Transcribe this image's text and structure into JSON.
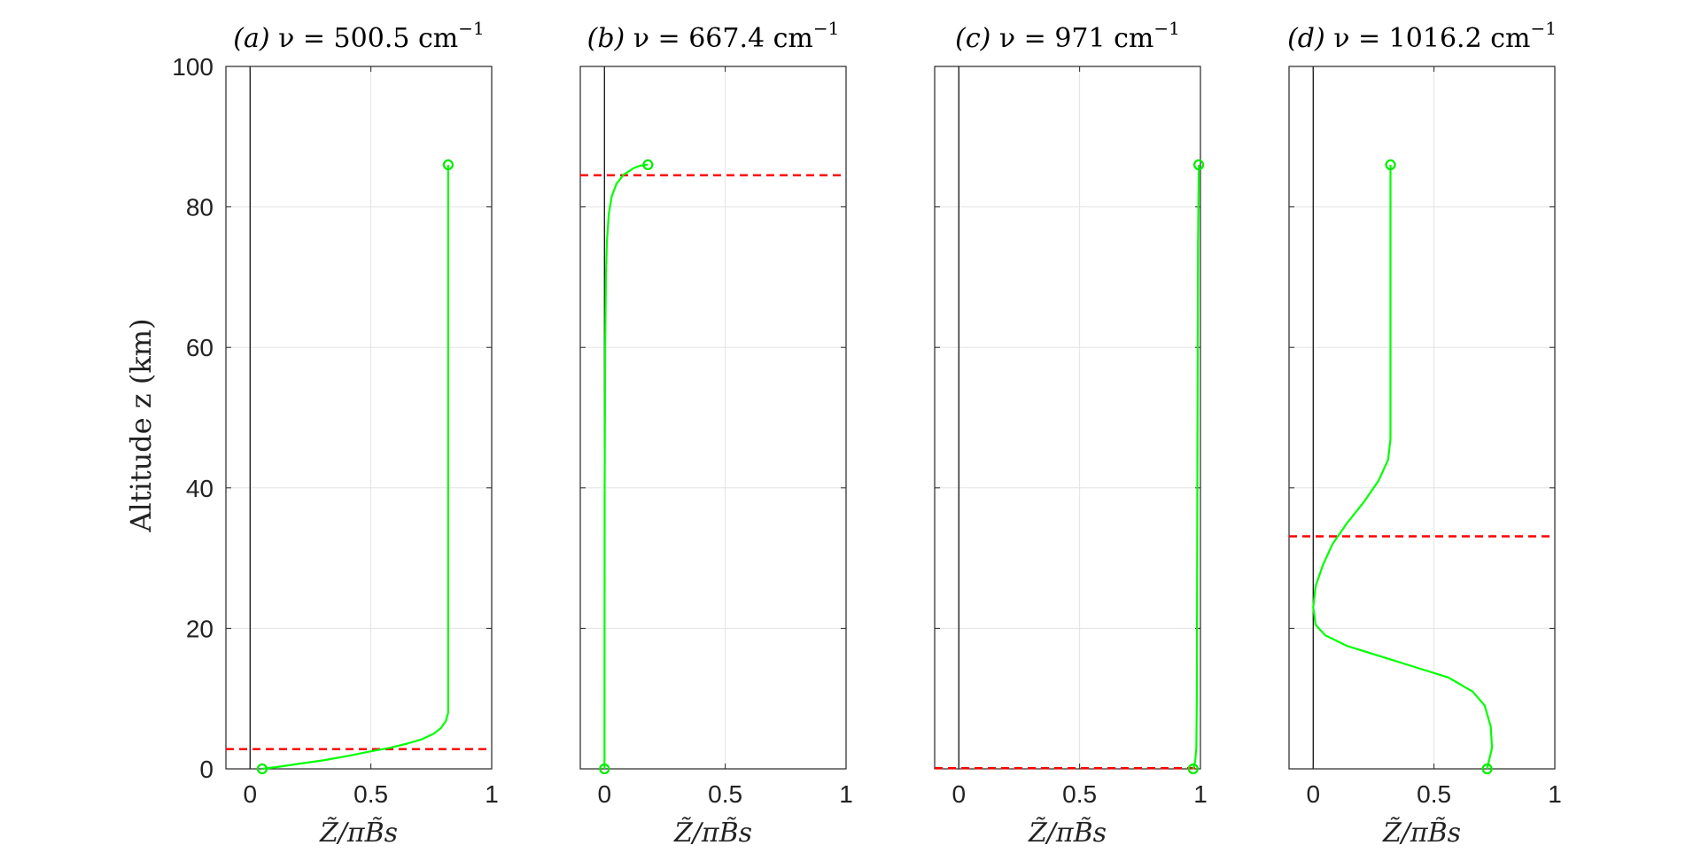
{
  "chart_data": {
    "type": "line",
    "ylabel": "Altitude z (km)",
    "ylim": [
      0,
      100
    ],
    "yticks": [
      0,
      20,
      40,
      60,
      80,
      100
    ],
    "xlim": [
      -0.1,
      1
    ],
    "xticks": [
      0,
      0.5,
      1
    ],
    "xtick_labels": [
      "0",
      "0.5",
      "1"
    ],
    "xlabel": "Z̃/πB̃s",
    "grid": true,
    "colors": {
      "curve": "#00ff00",
      "marker": "#00ee00",
      "dashed": "#ff0000",
      "zero_line": "#000000"
    },
    "panels": [
      {
        "id": "a",
        "title_prefix": "(a)",
        "title": "ν = 500.5 cm",
        "title_exp": "−1",
        "emission_level_km": 2.8,
        "curve": {
          "x": [
            0.05,
            0.12,
            0.2,
            0.3,
            0.4,
            0.5,
            0.58,
            0.65,
            0.71,
            0.76,
            0.79,
            0.81,
            0.82,
            0.82,
            0.82,
            0.82,
            0.82
          ],
          "z": [
            0,
            0.3,
            0.7,
            1.2,
            1.8,
            2.5,
            3.0,
            3.6,
            4.2,
            5.0,
            5.8,
            6.8,
            8,
            20,
            50,
            80,
            86
          ]
        }
      },
      {
        "id": "b",
        "title_prefix": "(b)",
        "title": "ν = 667.4 cm",
        "title_exp": "−1",
        "emission_level_km": 84.5,
        "curve": {
          "x": [
            0,
            0.001,
            0.003,
            0.006,
            0.01,
            0.018,
            0.03,
            0.05,
            0.08,
            0.12,
            0.15,
            0.18
          ],
          "z": [
            0,
            40,
            60,
            70,
            75,
            79,
            81.5,
            83.3,
            84.6,
            85.5,
            85.9,
            86
          ]
        }
      },
      {
        "id": "c",
        "title_prefix": "(c)",
        "title": "ν = 971 cm",
        "title_exp": "−1",
        "emission_level_km": 0.1,
        "curve": {
          "x": [
            0.97,
            0.978,
            0.983,
            0.985,
            0.987,
            0.99,
            0.993
          ],
          "z": [
            0,
            1,
            3,
            10,
            40,
            75,
            86
          ]
        }
      },
      {
        "id": "d",
        "title_prefix": "(d)",
        "title": "ν = 1016.2 cm",
        "title_exp": "−1",
        "emission_level_km": 33.1,
        "curve": {
          "x": [
            0.72,
            0.74,
            0.735,
            0.71,
            0.66,
            0.56,
            0.42,
            0.28,
            0.14,
            0.05,
            0.01,
            0.0,
            0.01,
            0.04,
            0.08,
            0.14,
            0.21,
            0.27,
            0.31,
            0.32,
            0.32,
            0.32,
            0.32
          ],
          "z": [
            0,
            3,
            6,
            9,
            11,
            13,
            14.5,
            16,
            17.5,
            19,
            20.5,
            23,
            26,
            29,
            32,
            35,
            38,
            41,
            44,
            47,
            55,
            75,
            86
          ]
        }
      }
    ]
  }
}
